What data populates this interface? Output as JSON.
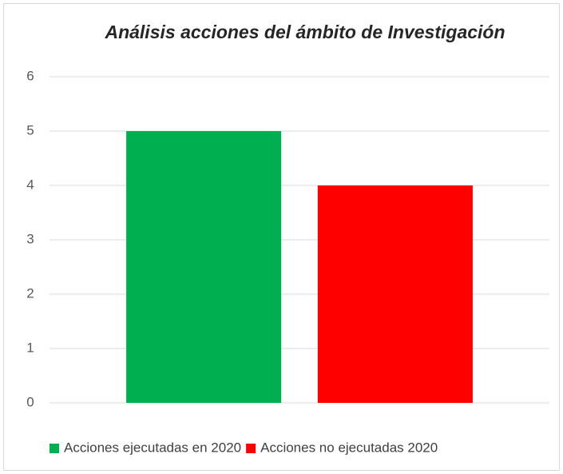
{
  "chart_data": {
    "type": "bar",
    "title": "Análisis acciones del ámbito de Investigación",
    "categories": [
      null
    ],
    "series": [
      {
        "name": "Acciones ejecutadas en 2020",
        "color": "#00b050",
        "values": [
          5
        ]
      },
      {
        "name": "Acciones no ejecutadas 2020",
        "color": "#ff0000",
        "values": [
          4
        ]
      }
    ],
    "ylim": [
      0,
      6
    ],
    "yticks": [
      0,
      1,
      2,
      3,
      4,
      5,
      6
    ],
    "grid": true,
    "legend": "bottom"
  }
}
